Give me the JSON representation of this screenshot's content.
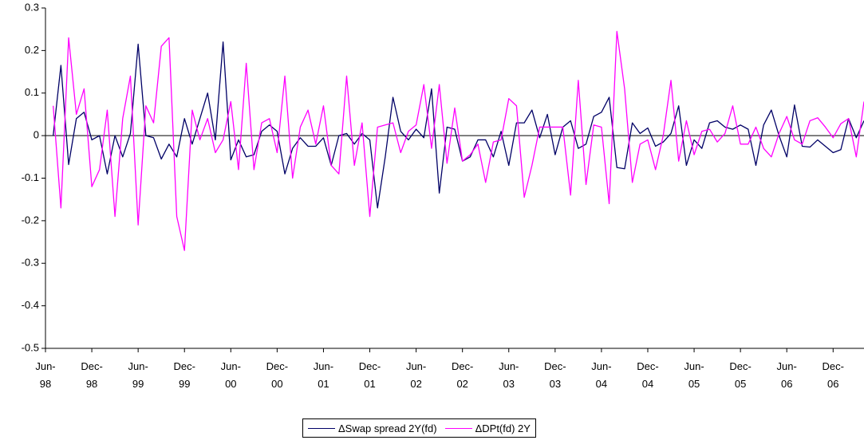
{
  "chart_data": {
    "type": "line",
    "categories": [
      "Jun-98",
      null,
      null,
      null,
      null,
      null,
      "Dec-98",
      null,
      null,
      null,
      null,
      null,
      "Jun-99",
      null,
      null,
      null,
      null,
      null,
      "Dec-99",
      null,
      null,
      null,
      null,
      null,
      "Jun-00",
      null,
      null,
      null,
      null,
      null,
      "Dec-00",
      null,
      null,
      null,
      null,
      null,
      "Jun-01",
      null,
      null,
      null,
      null,
      null,
      "Dec-01",
      null,
      null,
      null,
      null,
      null,
      "Jun-02",
      null,
      null,
      null,
      null,
      null,
      "Dec-02",
      null,
      null,
      null,
      null,
      null,
      "Jun-03",
      null,
      null,
      null,
      null,
      null,
      "Dec-03",
      null,
      null,
      null,
      null,
      null,
      "Jun-04",
      null,
      null,
      null,
      null,
      null,
      "Dec-04",
      null,
      null,
      null,
      null,
      null,
      "Jun-05",
      null,
      null,
      null,
      null,
      null,
      "Dec-05",
      null,
      null,
      null,
      null,
      null,
      "Jun-06",
      null,
      null,
      null,
      null,
      null,
      "Dec-06",
      null,
      null,
      null
    ],
    "series": [
      {
        "name": "ΔSwap spread 2Y(fd)",
        "color": "#000066",
        "values": [
          0.0,
          0.165,
          -0.068,
          0.04,
          0.055,
          -0.01,
          0.0,
          -0.09,
          0.0,
          -0.05,
          0.005,
          0.215,
          0.0,
          -0.005,
          -0.055,
          -0.02,
          -0.05,
          0.04,
          -0.02,
          0.04,
          0.1,
          -0.01,
          0.22,
          -0.057,
          -0.01,
          -0.05,
          -0.045,
          0.01,
          0.025,
          0.01,
          -0.09,
          -0.03,
          -0.005,
          -0.025,
          -0.025,
          -0.005,
          -0.07,
          0.0,
          0.005,
          -0.02,
          0.005,
          -0.01,
          -0.17,
          -0.05,
          0.09,
          0.01,
          -0.01,
          0.015,
          -0.005,
          0.11,
          -0.135,
          0.02,
          0.015,
          -0.06,
          -0.05,
          -0.01,
          -0.01,
          -0.05,
          0.01,
          -0.07,
          0.03,
          0.03,
          0.06,
          -0.005,
          0.05,
          -0.045,
          0.02,
          0.035,
          -0.03,
          -0.02,
          0.045,
          0.055,
          0.09,
          -0.075,
          -0.078,
          0.03,
          0.005,
          0.018,
          -0.025,
          -0.015,
          0.005,
          0.07,
          -0.07,
          -0.01,
          -0.03,
          0.03,
          0.035,
          0.02,
          0.015,
          0.025,
          0.015,
          -0.07,
          0.025,
          0.06,
          0.0,
          -0.05,
          0.072,
          -0.025,
          -0.027,
          -0.01,
          -0.025,
          -0.04,
          -0.033,
          0.04,
          -0.005,
          0.035
        ]
      },
      {
        "name": "ΔDPt(fd) 2Y",
        "color": "#ff00ff",
        "values": [
          0.07,
          -0.17,
          0.23,
          0.05,
          0.11,
          -0.12,
          -0.08,
          0.06,
          -0.19,
          0.04,
          0.14,
          -0.21,
          0.07,
          0.03,
          0.21,
          0.23,
          -0.19,
          -0.27,
          0.06,
          -0.01,
          0.04,
          -0.04,
          -0.01,
          0.08,
          -0.08,
          0.17,
          -0.08,
          0.03,
          0.04,
          -0.04,
          0.14,
          -0.1,
          0.02,
          0.06,
          -0.02,
          0.07,
          -0.07,
          -0.09,
          0.14,
          -0.07,
          0.03,
          -0.19,
          0.02,
          0.025,
          0.03,
          -0.04,
          0.01,
          0.025,
          0.12,
          -0.03,
          0.12,
          -0.065,
          0.065,
          -0.06,
          -0.045,
          -0.02,
          -0.11,
          -0.015,
          -0.01,
          0.087,
          0.07,
          -0.145,
          -0.07,
          0.02,
          0.02,
          0.02,
          0.02,
          -0.14,
          0.13,
          -0.115,
          0.025,
          0.02,
          -0.16,
          0.245,
          0.11,
          -0.11,
          -0.02,
          -0.01,
          -0.08,
          0.0,
          0.13,
          -0.06,
          0.035,
          -0.045,
          0.01,
          0.015,
          -0.015,
          0.005,
          0.07,
          -0.02,
          -0.02,
          0.02,
          -0.03,
          -0.05,
          0.005,
          0.045,
          -0.01,
          -0.02,
          0.035,
          0.042,
          0.02,
          -0.005,
          0.028,
          0.04,
          -0.05,
          0.08
        ]
      }
    ],
    "ylim": [
      -0.5,
      0.3
    ],
    "yticks": [
      -0.5,
      -0.4,
      -0.3,
      -0.2,
      -0.1,
      0,
      0.1,
      0.2,
      0.3
    ],
    "grid": false,
    "legend": "bottom"
  }
}
